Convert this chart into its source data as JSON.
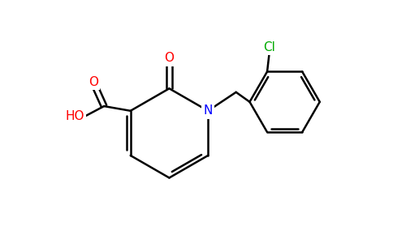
{
  "bg_color": "#ffffff",
  "atom_colors": {
    "O": "#ff0000",
    "N": "#0000ff",
    "Cl": "#00aa00",
    "C": "#000000",
    "H": "#000000"
  },
  "bond_color": "#000000",
  "bond_width": 1.8,
  "figsize": [
    4.84,
    3.0
  ],
  "dpi": 100
}
